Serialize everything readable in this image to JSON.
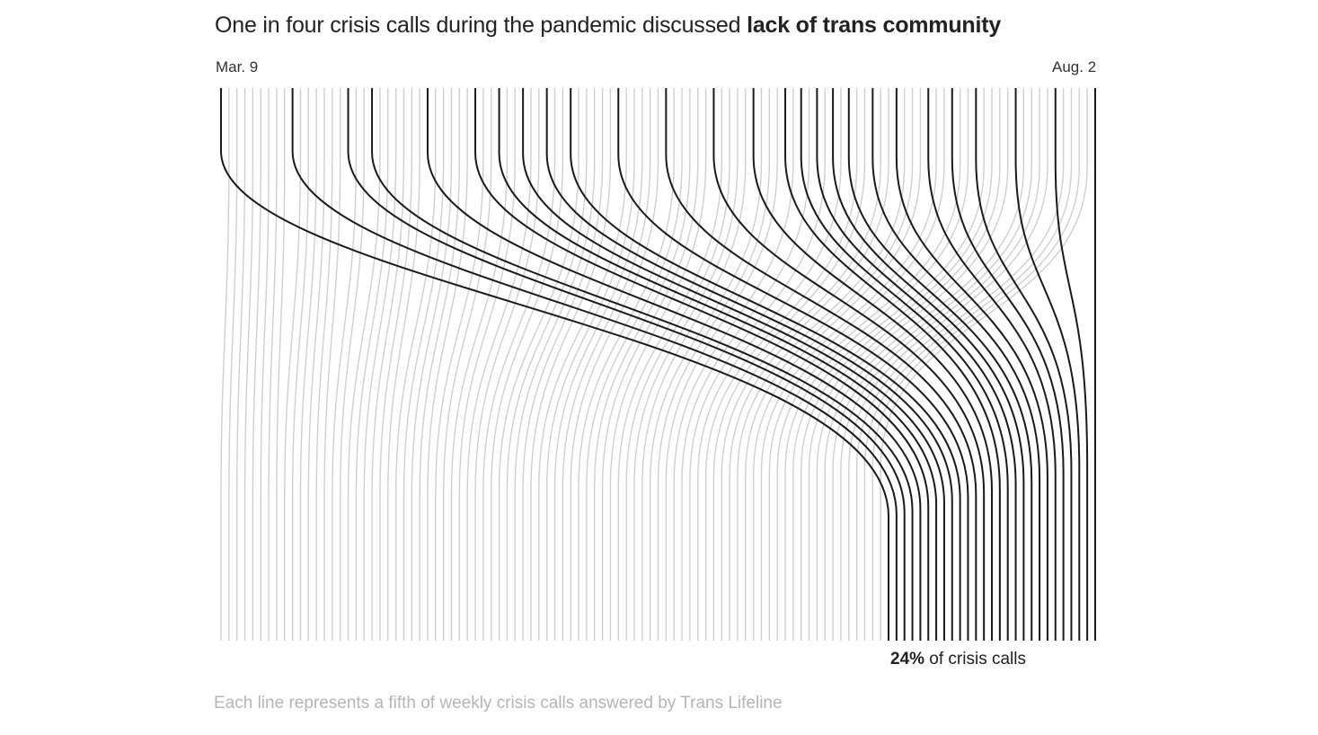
{
  "title": {
    "lead": "One in four crisis calls during the pandemic discussed ",
    "emphasis": "lack of trans community"
  },
  "axis": {
    "start_label": "Mar. 9",
    "end_label": "Aug. 2"
  },
  "annotation": {
    "value": "24%",
    "suffix": " of crisis calls"
  },
  "note": "Each line represents a fifth of weekly crisis calls answered by Trans Lifeline",
  "colors": {
    "highlight": "#1a1a1a",
    "other": "#cfcfcf",
    "note": "#b5b5b5"
  },
  "chart_data": {
    "type": "line",
    "unit": "one line = a fifth of weekly crisis calls",
    "total_lines": 111,
    "highlight_share_percent": 24,
    "highlighted_line_count": 27,
    "highlighted_start_slots": [
      0,
      9,
      16,
      19,
      26,
      32,
      35,
      38,
      41,
      44,
      50,
      56,
      62,
      67,
      71,
      73,
      75,
      77,
      79,
      82,
      85,
      89,
      92,
      95,
      100,
      105,
      110
    ]
  }
}
